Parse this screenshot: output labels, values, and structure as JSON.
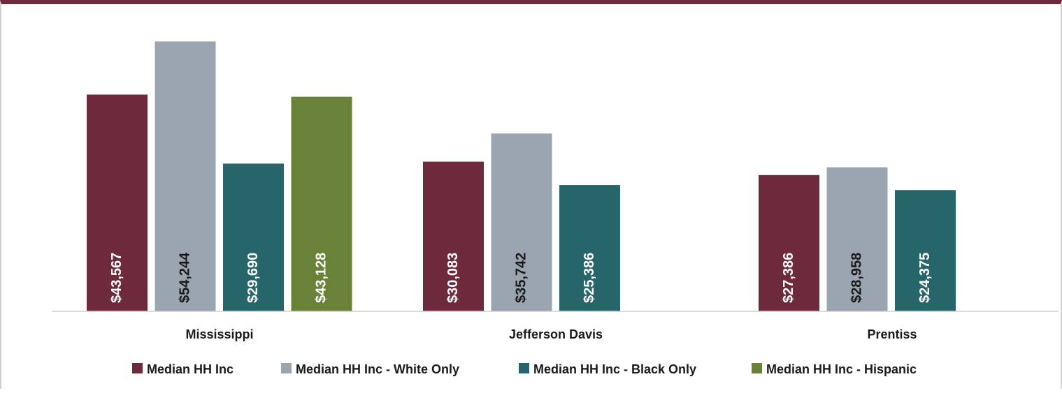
{
  "chart_data": {
    "type": "bar",
    "categories": [
      "Mississippi",
      "Jefferson Davis",
      "Prentiss"
    ],
    "series": [
      {
        "name": "Median HH Inc",
        "color": "#6d2a3b",
        "label_color": "#ffffff",
        "values": [
          43567,
          30083,
          27386
        ],
        "labels": [
          "$43,567",
          "$30,083",
          "$27,386"
        ]
      },
      {
        "name": "Median HH Inc - White Only",
        "color": "#9aa5b0",
        "label_color": "#1a1a1a",
        "values": [
          54244,
          35742,
          28958
        ],
        "labels": [
          "$54,244",
          "$35,742",
          "$28,958"
        ]
      },
      {
        "name": "Median HH Inc - Black Only",
        "color": "#26666b",
        "label_color": "#ffffff",
        "values": [
          29690,
          25386,
          24375
        ],
        "labels": [
          "$29,690",
          "$25,386",
          "$24,375"
        ]
      },
      {
        "name": "Median HH Inc - Hispanic",
        "color": "#6a8238",
        "label_color": "#ffffff",
        "values": [
          43128,
          null,
          null
        ],
        "labels": [
          "$43,128",
          "",
          ""
        ]
      }
    ],
    "title": "",
    "xlabel": "",
    "ylabel": "",
    "ylim": [
      0,
      55000
    ],
    "grid": false,
    "legend_position": "bottom"
  }
}
